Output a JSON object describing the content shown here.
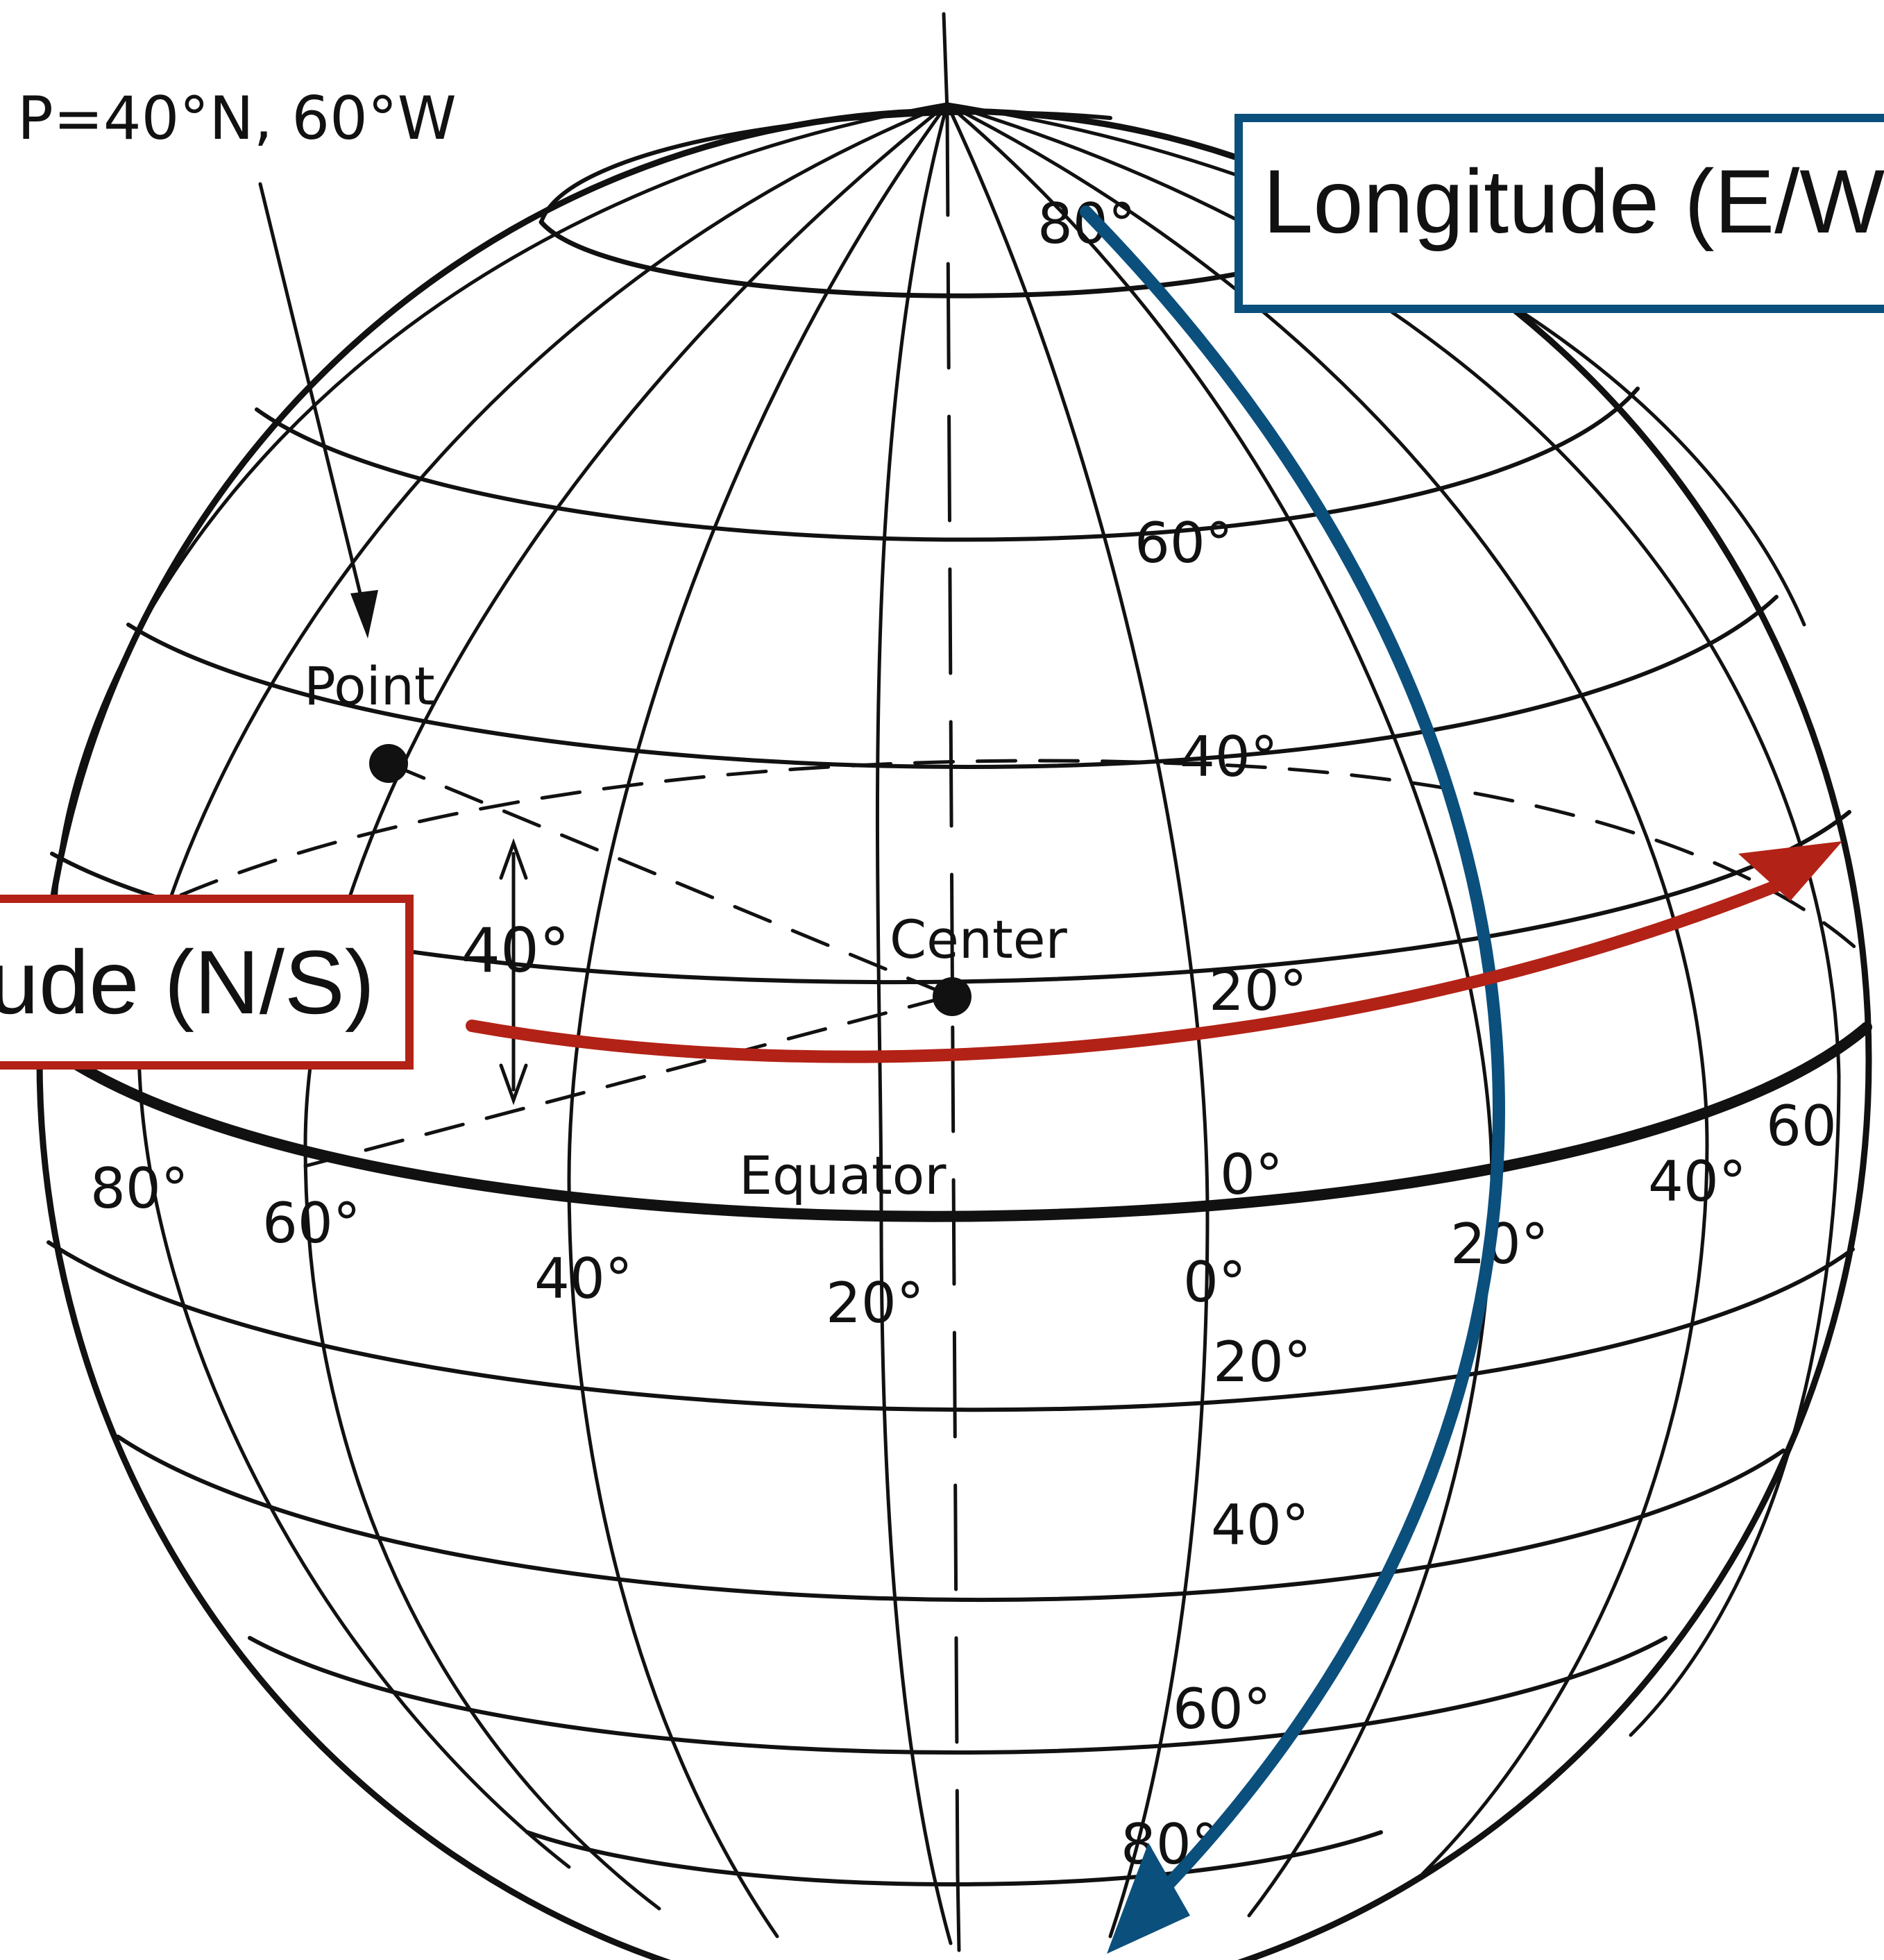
{
  "point_caption": "P=40°N, 60°W",
  "labels": {
    "point": "Point",
    "center": "Center",
    "equator": "Equator",
    "angle": "40°"
  },
  "latitude_labels": {
    "north": [
      "80°",
      "60°",
      "40°",
      "20°",
      "0°"
    ],
    "south": [
      "20°",
      "40°",
      "60°",
      "80°"
    ]
  },
  "longitude_labels": [
    "80°",
    "60°",
    "40°",
    "20°",
    "0°",
    "20°",
    "40°",
    "60"
  ],
  "callouts": {
    "longitude": "Longitude (E/W)",
    "latitude": "Latitude (N/S)"
  },
  "colors": {
    "ink": "#111111",
    "longitude_callout": "#0b4f7d",
    "latitude_callout": "#b32216"
  }
}
